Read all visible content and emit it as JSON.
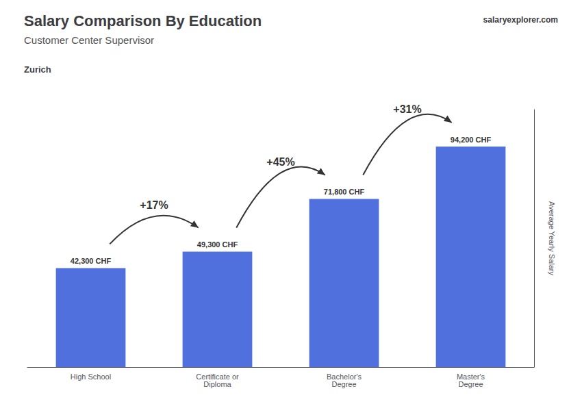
{
  "chart_data": {
    "type": "bar",
    "title": "Salary Comparison By Education",
    "subtitle": "Customer Center Supervisor",
    "ylabel": "Average Yearly Salary",
    "categories": [
      "High School",
      "Certificate or\nDiploma",
      "Bachelor's\nDegree",
      "Master's\nDegree"
    ],
    "values": [
      42300,
      49300,
      71800,
      94200
    ],
    "value_labels": [
      "42,300 CHF",
      "49,300 CHF",
      "71,800 CHF",
      "94,200 CHF"
    ],
    "data_labels": true,
    "ylim": [
      0,
      110000
    ],
    "grid": false,
    "tick_labels": "x",
    "annotations": [
      {
        "text": "Zurich"
      },
      {
        "text": "salaryexplorer.com"
      },
      {
        "text": "+17%",
        "from": "High School",
        "to": "Certificate or\nDiploma"
      },
      {
        "text": "+45%",
        "from": "Certificate or\nDiploma",
        "to": "Bachelor's\nDegree"
      },
      {
        "text": "+31%",
        "from": "Bachelor's\nDegree",
        "to": "Master's\nDegree"
      }
    ]
  }
}
